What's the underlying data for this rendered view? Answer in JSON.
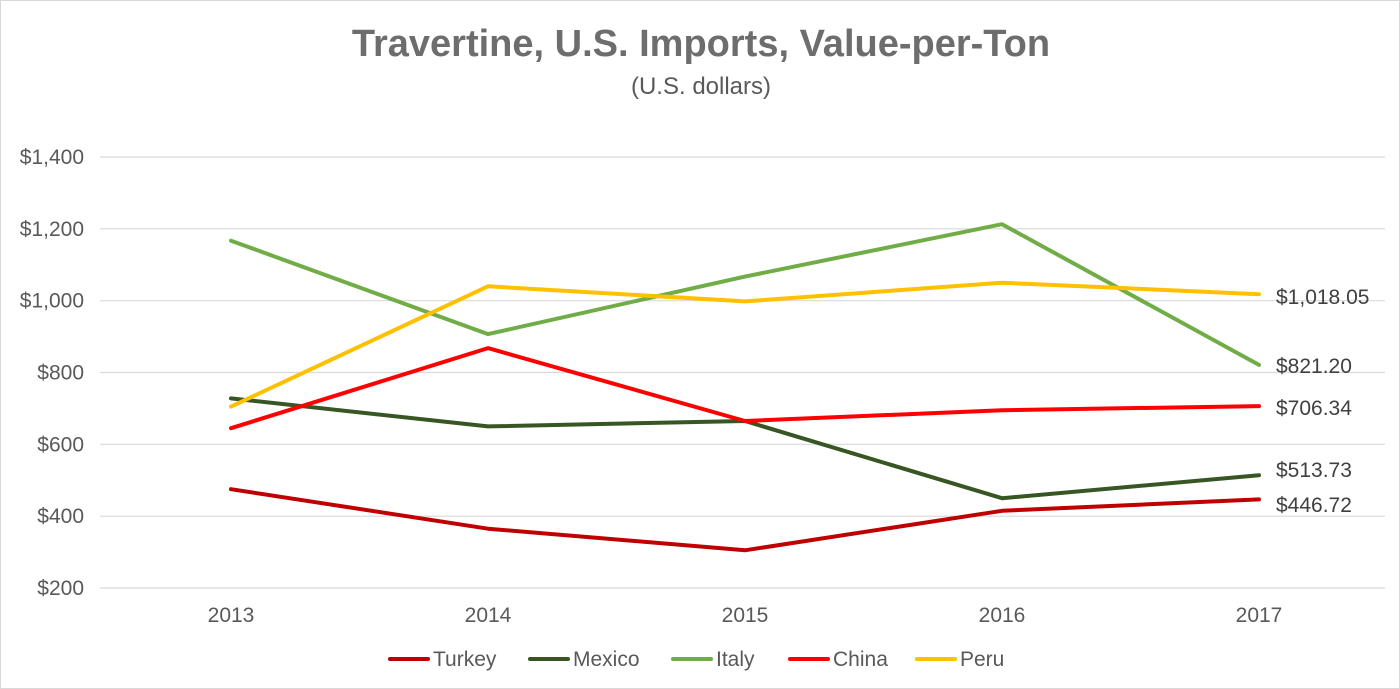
{
  "chart_data": {
    "type": "line",
    "title": "Travertine, U.S. Imports, Value-per-Ton",
    "subtitle": "(U.S. dollars)",
    "x": [
      "2013",
      "2014",
      "2015",
      "2016",
      "2017"
    ],
    "ylim": [
      200,
      1400
    ],
    "yticks": [
      200,
      400,
      600,
      800,
      1000,
      1200,
      1400
    ],
    "ytick_labels": [
      "$200",
      "$400",
      "$600",
      "$800",
      "$1,000",
      "$1,200",
      "$1,400"
    ],
    "grid": true,
    "legend": "bottom",
    "series": [
      {
        "name": "Turkey",
        "color": "#c00000",
        "values": [
          475,
          365,
          305,
          415,
          446.72
        ],
        "end_label": "$446.72"
      },
      {
        "name": "Mexico",
        "color": "#375623",
        "values": [
          728,
          650,
          665,
          450,
          513.73
        ],
        "end_label": "$513.73"
      },
      {
        "name": "Italy",
        "color": "#70ad47",
        "values": [
          1167,
          907,
          1067,
          1213,
          821.2
        ],
        "end_label": "$821.20"
      },
      {
        "name": "China",
        "color": "#ff0000",
        "values": [
          645,
          868,
          665,
          695,
          706.34
        ],
        "end_label": "$706.34"
      },
      {
        "name": "Peru",
        "color": "#ffc000",
        "values": [
          705,
          1040,
          998,
          1050,
          1018.05
        ],
        "end_label": "$1,018.05"
      }
    ]
  }
}
